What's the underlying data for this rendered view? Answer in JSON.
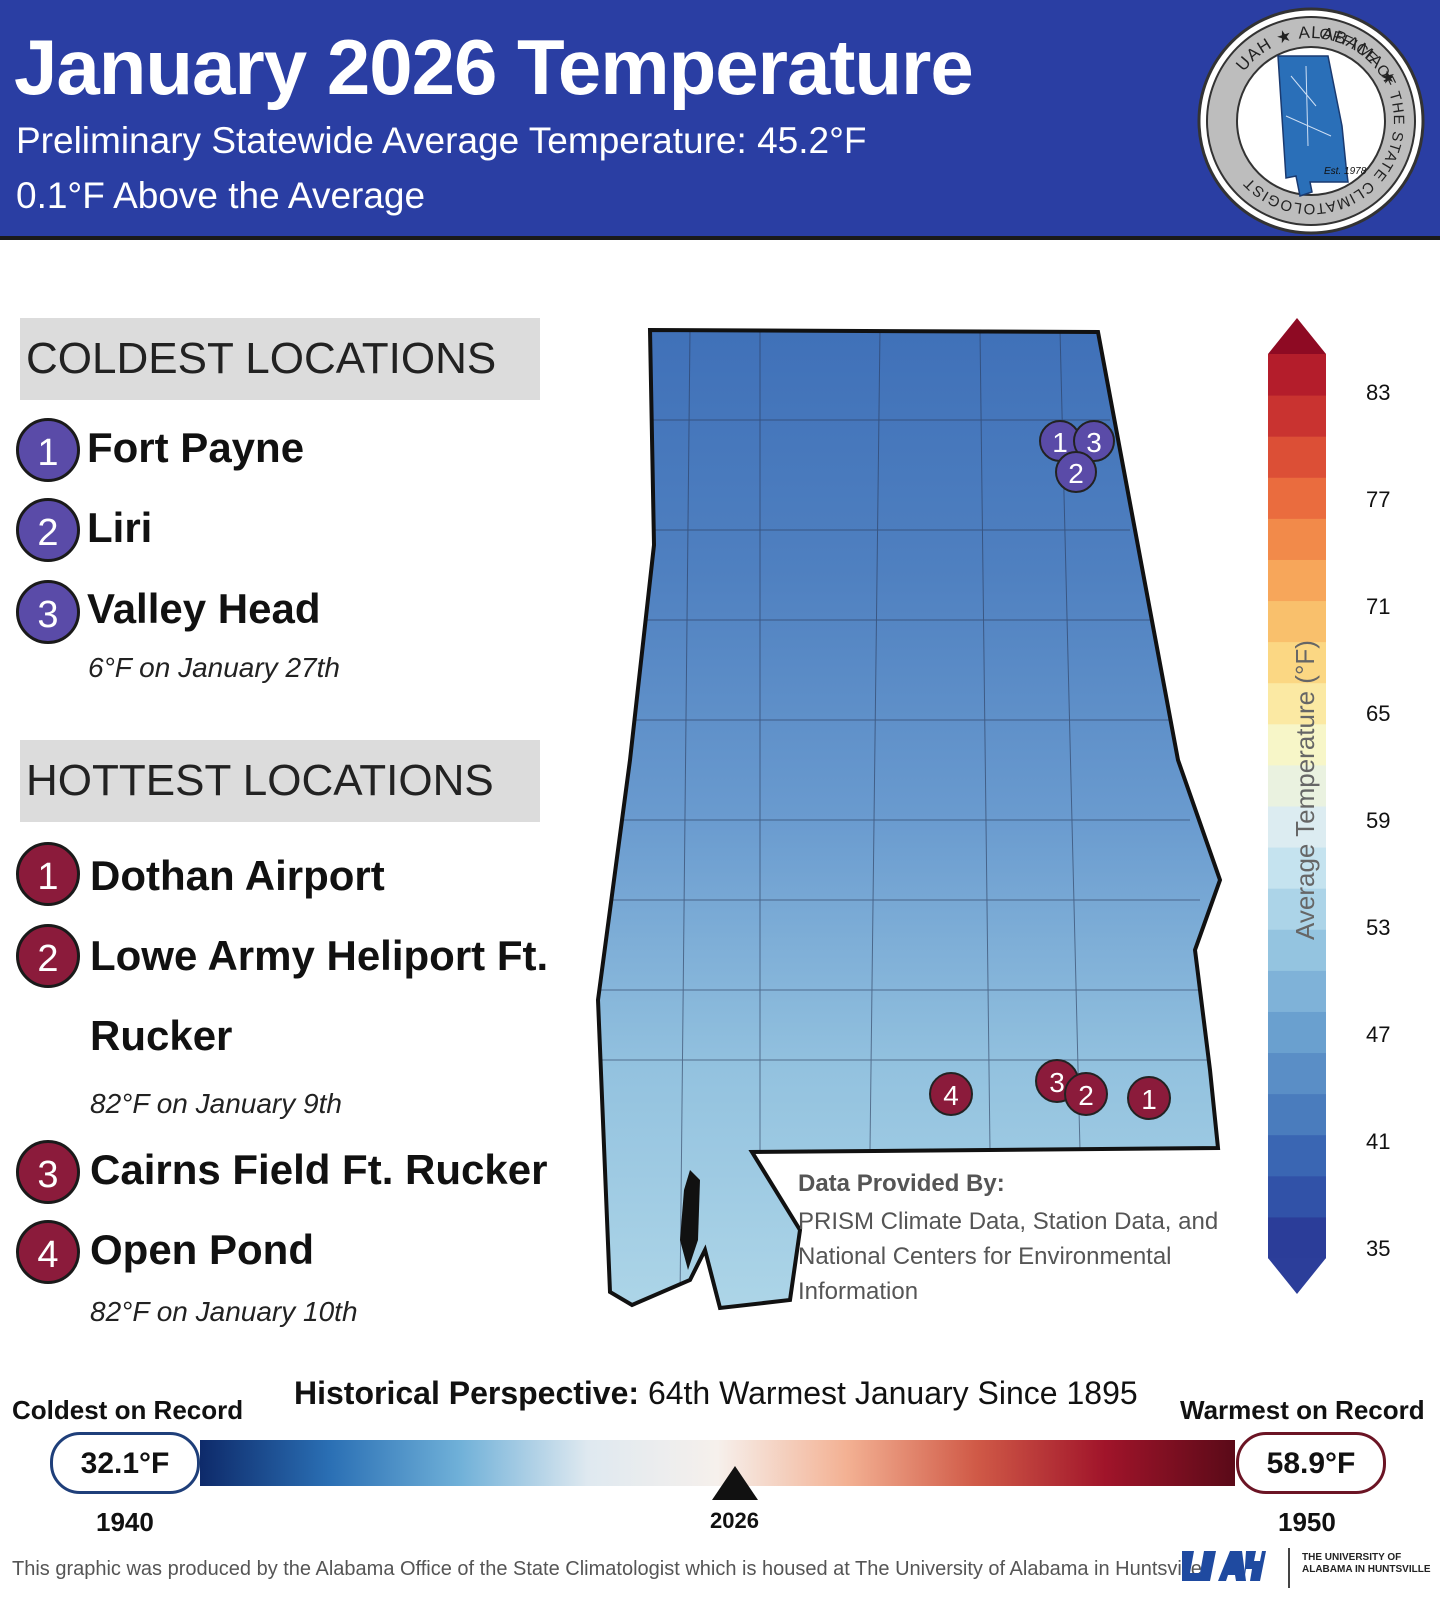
{
  "header": {
    "title": "January 2026 Temperature",
    "line1": "Preliminary Statewide Average Temperature: 45.2°F",
    "line2": "0.1°F Above the Average",
    "seal": {
      "text_top": "UAH ★ ALABAMA ★",
      "text_ring": "OFFICE OF THE STATE CLIMATOLOGIST",
      "est": "Est. 1978"
    }
  },
  "coldest": {
    "label": "COLDEST LOCATIONS",
    "items": [
      {
        "rank": "1",
        "name": "Fort Payne"
      },
      {
        "rank": "2",
        "name": "Liri"
      },
      {
        "rank": "3",
        "name": "Valley Head"
      }
    ],
    "note": "6°F on January 27th"
  },
  "hottest": {
    "label": "HOTTEST LOCATIONS",
    "items": [
      {
        "rank": "1",
        "name": "Dothan Airport"
      },
      {
        "rank": "2",
        "name": "Lowe Army Heliport Ft.",
        "name2": "Rucker"
      },
      {
        "rank": "3",
        "name": "Cairns Field Ft. Rucker"
      },
      {
        "rank": "4",
        "name": "Open Pond"
      }
    ],
    "note1": "82°F on January 9th",
    "note2": "82°F on January 10th"
  },
  "map": {
    "cold_markers": [
      "1",
      "3",
      "2"
    ],
    "hot_markers": [
      "4",
      "3",
      "2",
      "1"
    ],
    "colors": {
      "cold_marker": "#5a4ba8",
      "hot_marker": "#8b1b3b",
      "north": "#3f70b8",
      "mid": "#6ea0d0",
      "south": "#a8d0e6"
    }
  },
  "credit": {
    "heading": "Data Provided By:",
    "body": "PRISM Climate Data, Station Data, and National Centers for Environmental Information"
  },
  "legend": {
    "title": "Average Temperature (°F)",
    "ticks": [
      "83",
      "77",
      "71",
      "65",
      "59",
      "53",
      "47",
      "41",
      "35"
    ],
    "range": [
      35,
      83
    ]
  },
  "history": {
    "label": "Historical Perspective:",
    "value": "64th Warmest January Since 1895",
    "coldest_label": "Coldest on Record",
    "warmest_label": "Warmest on Record",
    "coldest_value": "32.1°F",
    "warmest_value": "58.9°F",
    "coldest_year": "1940",
    "warmest_year": "1950",
    "current_year": "2026"
  },
  "footer": {
    "text": "This graphic was produced by the Alabama Office of the State Climatologist which is housed at The University of Alabama in Huntsville",
    "uah_line1": "THE UNIVERSITY OF",
    "uah_line2": "ALABAMA IN HUNTSVILLE"
  }
}
